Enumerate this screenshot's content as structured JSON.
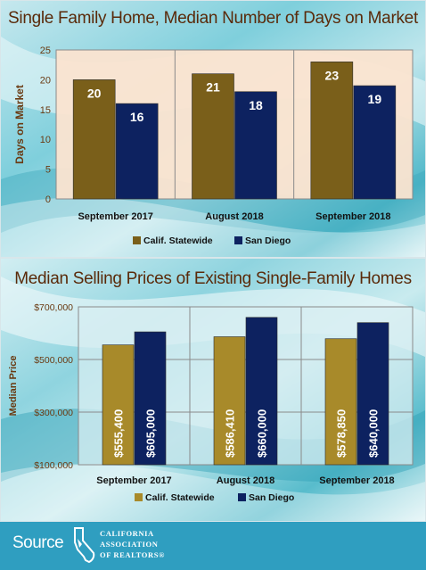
{
  "colors": {
    "statewide": "#7a5f1a",
    "statewide_price": "#a88a2a",
    "sandiego": "#0d2260",
    "title": "#5a2a0a",
    "footer": "#2f9ec0"
  },
  "chart_data": [
    {
      "type": "bar",
      "title": "Single Family Home, Median Number of Days on Market",
      "ylabel": "Days on Market",
      "xlabel": "",
      "categories": [
        "September 2017",
        "August 2018",
        "September 2018"
      ],
      "series": [
        {
          "name": "Calif. Statewide",
          "values": [
            20,
            21,
            23
          ],
          "labels": [
            "20",
            "21",
            "23"
          ]
        },
        {
          "name": "San Diego",
          "values": [
            16,
            18,
            19
          ],
          "labels": [
            "16",
            "18",
            "19"
          ]
        }
      ],
      "ylim": [
        0,
        25
      ],
      "yticks": [
        0,
        5,
        10,
        15,
        20,
        25
      ],
      "ytick_labels": [
        "0",
        "5",
        "10",
        "15",
        "20",
        "25"
      ],
      "legend": "bottom",
      "grid": "vertical separators"
    },
    {
      "type": "bar",
      "title": "Median Selling Prices of Existing Single-Family Homes",
      "ylabel": "Median Price",
      "xlabel": "",
      "categories": [
        "September 2017",
        "August 2018",
        "September 2018"
      ],
      "series": [
        {
          "name": "Calif. Statewide",
          "values": [
            555400,
            586410,
            578850
          ],
          "labels": [
            "$555,400",
            "$586,410",
            "$578,850"
          ]
        },
        {
          "name": "San Diego",
          "values": [
            605000,
            660000,
            640000
          ],
          "labels": [
            "$605,000",
            "$660,000",
            "$640,000"
          ]
        }
      ],
      "ylim": [
        100000,
        700000
      ],
      "yticks": [
        100000,
        300000,
        500000,
        700000
      ],
      "ytick_labels": [
        "$100,000",
        "$300,000",
        "$500,000",
        "$700,000"
      ],
      "legend": "bottom",
      "grid": "horizontal and vertical"
    }
  ],
  "footer": {
    "source_label": "Source",
    "logo_text": [
      "CALIFORNIA",
      "ASSOCIATION",
      "OF REALTORS®"
    ]
  }
}
